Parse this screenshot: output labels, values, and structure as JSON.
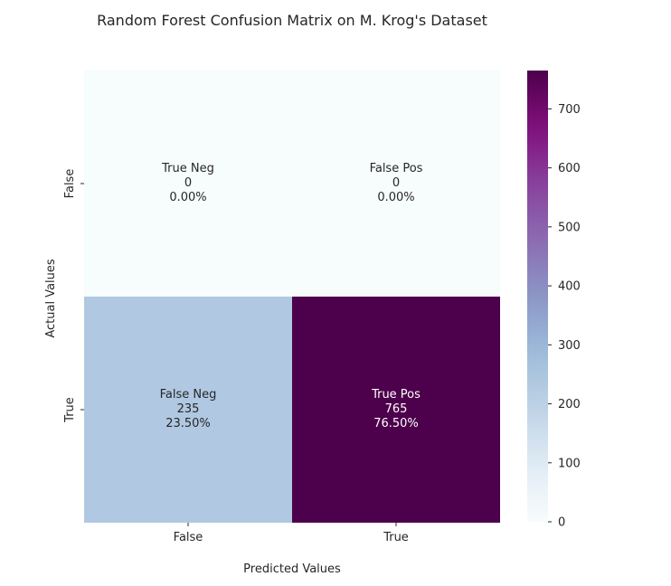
{
  "chart_data": {
    "type": "heatmap",
    "title": "Random Forest Confusion Matrix on M. Krog's Dataset",
    "xlabel": "Predicted Values",
    "ylabel": "Actual Values",
    "x_categories": [
      "False",
      "True"
    ],
    "y_categories": [
      "False",
      "True"
    ],
    "cells": [
      [
        {
          "name": "True Neg",
          "count": "0",
          "percent": "0.00%",
          "value": 0
        },
        {
          "name": "False Pos",
          "count": "0",
          "percent": "0.00%",
          "value": 0
        }
      ],
      [
        {
          "name": "False Neg",
          "count": "235",
          "percent": "23.50%",
          "value": 235
        },
        {
          "name": "True Pos",
          "count": "765",
          "percent": "76.50%",
          "value": 765
        }
      ]
    ],
    "colorbar": {
      "colormap": "BuPu",
      "vmin": 0,
      "vmax": 765,
      "ticks": [
        0,
        100,
        200,
        300,
        400,
        500,
        600,
        700
      ]
    }
  }
}
